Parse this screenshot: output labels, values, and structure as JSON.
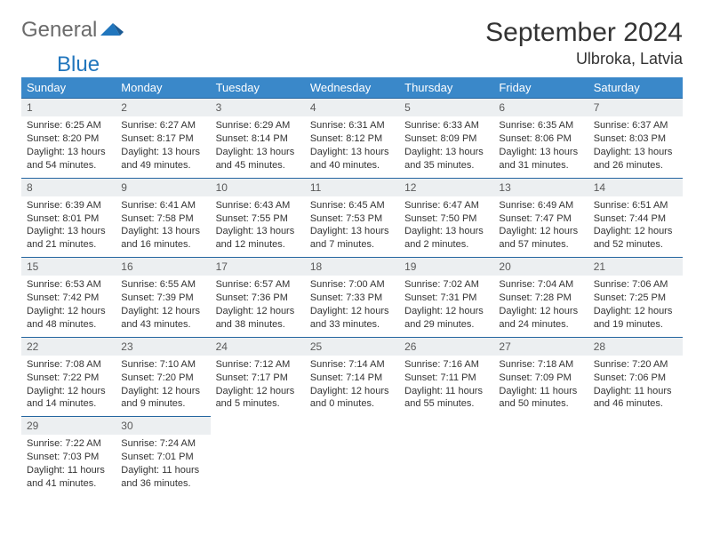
{
  "logo": {
    "general": "General",
    "blue": "Blue"
  },
  "header": {
    "title": "September 2024",
    "location": "Ulbroka, Latvia"
  },
  "colors": {
    "header_bg": "#3a88c9",
    "daynum_bg": "#eceff1",
    "daynum_border": "#2465a0",
    "logo_gray": "#6b6b6b",
    "logo_blue": "#2176bd"
  },
  "weekdays": [
    "Sunday",
    "Monday",
    "Tuesday",
    "Wednesday",
    "Thursday",
    "Friday",
    "Saturday"
  ],
  "weeks": [
    [
      {
        "n": "1",
        "sunrise": "Sunrise: 6:25 AM",
        "sunset": "Sunset: 8:20 PM",
        "daylight": "Daylight: 13 hours and 54 minutes."
      },
      {
        "n": "2",
        "sunrise": "Sunrise: 6:27 AM",
        "sunset": "Sunset: 8:17 PM",
        "daylight": "Daylight: 13 hours and 49 minutes."
      },
      {
        "n": "3",
        "sunrise": "Sunrise: 6:29 AM",
        "sunset": "Sunset: 8:14 PM",
        "daylight": "Daylight: 13 hours and 45 minutes."
      },
      {
        "n": "4",
        "sunrise": "Sunrise: 6:31 AM",
        "sunset": "Sunset: 8:12 PM",
        "daylight": "Daylight: 13 hours and 40 minutes."
      },
      {
        "n": "5",
        "sunrise": "Sunrise: 6:33 AM",
        "sunset": "Sunset: 8:09 PM",
        "daylight": "Daylight: 13 hours and 35 minutes."
      },
      {
        "n": "6",
        "sunrise": "Sunrise: 6:35 AM",
        "sunset": "Sunset: 8:06 PM",
        "daylight": "Daylight: 13 hours and 31 minutes."
      },
      {
        "n": "7",
        "sunrise": "Sunrise: 6:37 AM",
        "sunset": "Sunset: 8:03 PM",
        "daylight": "Daylight: 13 hours and 26 minutes."
      }
    ],
    [
      {
        "n": "8",
        "sunrise": "Sunrise: 6:39 AM",
        "sunset": "Sunset: 8:01 PM",
        "daylight": "Daylight: 13 hours and 21 minutes."
      },
      {
        "n": "9",
        "sunrise": "Sunrise: 6:41 AM",
        "sunset": "Sunset: 7:58 PM",
        "daylight": "Daylight: 13 hours and 16 minutes."
      },
      {
        "n": "10",
        "sunrise": "Sunrise: 6:43 AM",
        "sunset": "Sunset: 7:55 PM",
        "daylight": "Daylight: 13 hours and 12 minutes."
      },
      {
        "n": "11",
        "sunrise": "Sunrise: 6:45 AM",
        "sunset": "Sunset: 7:53 PM",
        "daylight": "Daylight: 13 hours and 7 minutes."
      },
      {
        "n": "12",
        "sunrise": "Sunrise: 6:47 AM",
        "sunset": "Sunset: 7:50 PM",
        "daylight": "Daylight: 13 hours and 2 minutes."
      },
      {
        "n": "13",
        "sunrise": "Sunrise: 6:49 AM",
        "sunset": "Sunset: 7:47 PM",
        "daylight": "Daylight: 12 hours and 57 minutes."
      },
      {
        "n": "14",
        "sunrise": "Sunrise: 6:51 AM",
        "sunset": "Sunset: 7:44 PM",
        "daylight": "Daylight: 12 hours and 52 minutes."
      }
    ],
    [
      {
        "n": "15",
        "sunrise": "Sunrise: 6:53 AM",
        "sunset": "Sunset: 7:42 PM",
        "daylight": "Daylight: 12 hours and 48 minutes."
      },
      {
        "n": "16",
        "sunrise": "Sunrise: 6:55 AM",
        "sunset": "Sunset: 7:39 PM",
        "daylight": "Daylight: 12 hours and 43 minutes."
      },
      {
        "n": "17",
        "sunrise": "Sunrise: 6:57 AM",
        "sunset": "Sunset: 7:36 PM",
        "daylight": "Daylight: 12 hours and 38 minutes."
      },
      {
        "n": "18",
        "sunrise": "Sunrise: 7:00 AM",
        "sunset": "Sunset: 7:33 PM",
        "daylight": "Daylight: 12 hours and 33 minutes."
      },
      {
        "n": "19",
        "sunrise": "Sunrise: 7:02 AM",
        "sunset": "Sunset: 7:31 PM",
        "daylight": "Daylight: 12 hours and 29 minutes."
      },
      {
        "n": "20",
        "sunrise": "Sunrise: 7:04 AM",
        "sunset": "Sunset: 7:28 PM",
        "daylight": "Daylight: 12 hours and 24 minutes."
      },
      {
        "n": "21",
        "sunrise": "Sunrise: 7:06 AM",
        "sunset": "Sunset: 7:25 PM",
        "daylight": "Daylight: 12 hours and 19 minutes."
      }
    ],
    [
      {
        "n": "22",
        "sunrise": "Sunrise: 7:08 AM",
        "sunset": "Sunset: 7:22 PM",
        "daylight": "Daylight: 12 hours and 14 minutes."
      },
      {
        "n": "23",
        "sunrise": "Sunrise: 7:10 AM",
        "sunset": "Sunset: 7:20 PM",
        "daylight": "Daylight: 12 hours and 9 minutes."
      },
      {
        "n": "24",
        "sunrise": "Sunrise: 7:12 AM",
        "sunset": "Sunset: 7:17 PM",
        "daylight": "Daylight: 12 hours and 5 minutes."
      },
      {
        "n": "25",
        "sunrise": "Sunrise: 7:14 AM",
        "sunset": "Sunset: 7:14 PM",
        "daylight": "Daylight: 12 hours and 0 minutes."
      },
      {
        "n": "26",
        "sunrise": "Sunrise: 7:16 AM",
        "sunset": "Sunset: 7:11 PM",
        "daylight": "Daylight: 11 hours and 55 minutes."
      },
      {
        "n": "27",
        "sunrise": "Sunrise: 7:18 AM",
        "sunset": "Sunset: 7:09 PM",
        "daylight": "Daylight: 11 hours and 50 minutes."
      },
      {
        "n": "28",
        "sunrise": "Sunrise: 7:20 AM",
        "sunset": "Sunset: 7:06 PM",
        "daylight": "Daylight: 11 hours and 46 minutes."
      }
    ],
    [
      {
        "n": "29",
        "sunrise": "Sunrise: 7:22 AM",
        "sunset": "Sunset: 7:03 PM",
        "daylight": "Daylight: 11 hours and 41 minutes."
      },
      {
        "n": "30",
        "sunrise": "Sunrise: 7:24 AM",
        "sunset": "Sunset: 7:01 PM",
        "daylight": "Daylight: 11 hours and 36 minutes."
      },
      null,
      null,
      null,
      null,
      null
    ]
  ]
}
